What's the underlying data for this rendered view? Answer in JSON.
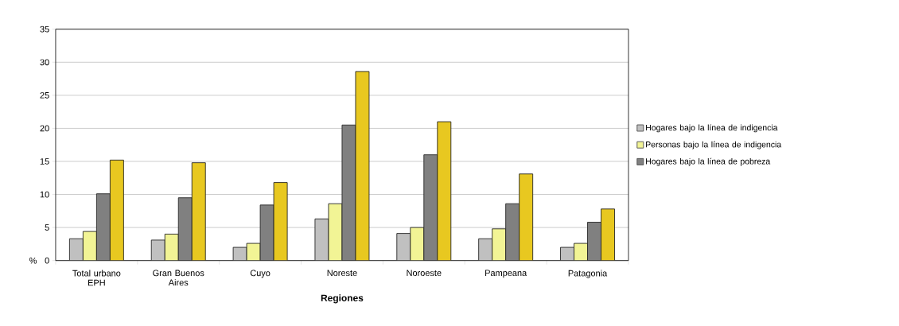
{
  "chart_data": {
    "type": "bar",
    "xlabel": "Regiones",
    "ylabel": "%",
    "categories": [
      "Total urbano EPH",
      "Gran Buenos Aires",
      "Cuyo",
      "Noreste",
      "Noroeste",
      "Pampeana",
      "Patagonia"
    ],
    "series": [
      {
        "name": "Hogares bajo la línea de indigencia",
        "color": "#c0c0c0",
        "values": [
          3.3,
          3.1,
          2.0,
          6.3,
          4.1,
          3.3,
          2.0
        ]
      },
      {
        "name": "Personas bajo la línea de indigencia",
        "color": "#f2f495",
        "values": [
          4.4,
          4.0,
          2.6,
          8.6,
          5.0,
          4.8,
          2.6
        ]
      },
      {
        "name": "Hogares bajo la línea de pobreza",
        "color": "#808080",
        "values": [
          10.1,
          9.5,
          8.4,
          20.5,
          16.0,
          8.6,
          5.8
        ]
      },
      {
        "color": "#e8c820",
        "values": [
          15.2,
          14.8,
          11.8,
          28.6,
          21.0,
          13.1,
          7.8
        ]
      }
    ],
    "ylim": [
      0,
      35
    ],
    "yticks": [
      0,
      5,
      10,
      15,
      20,
      25,
      30,
      35
    ],
    "grid": "y",
    "legend": "right"
  }
}
